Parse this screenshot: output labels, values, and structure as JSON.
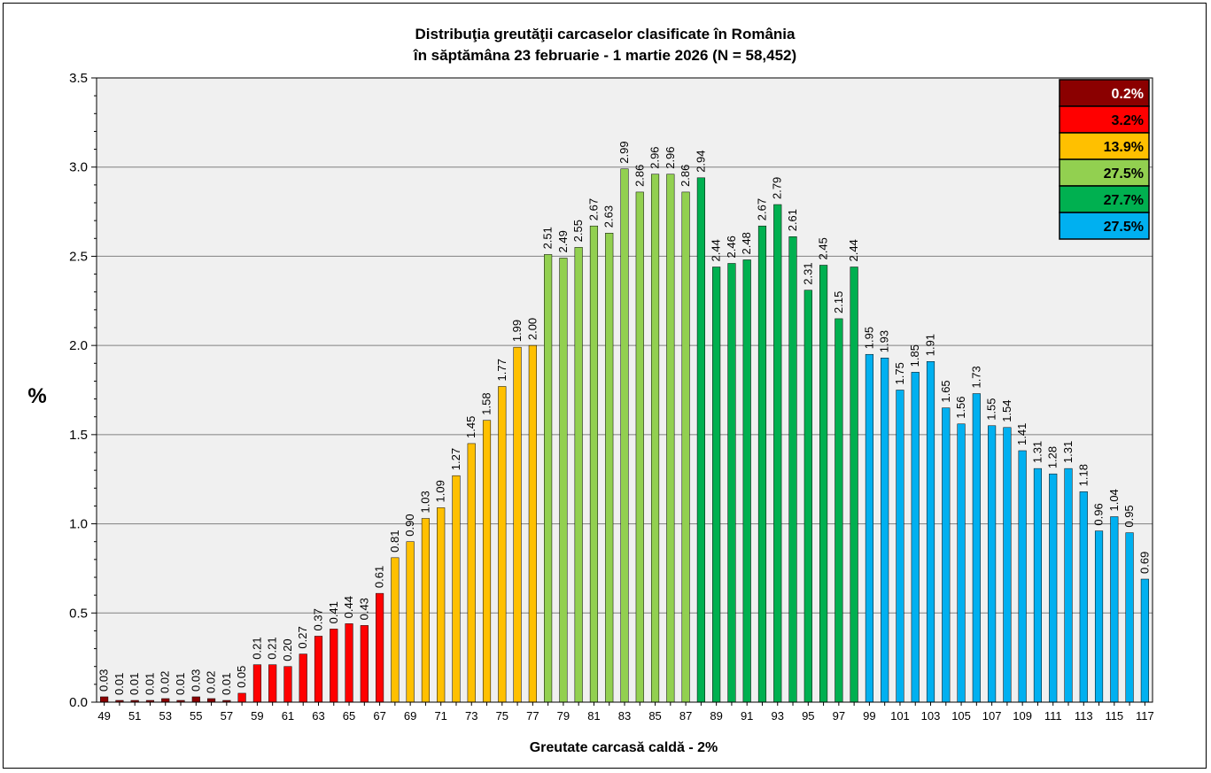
{
  "chart_data": {
    "type": "bar",
    "title": "Distribuţia greutăţii carcaselor clasificate în România",
    "subtitle": "în săptămâna 23 februarie - 1 martie 2026 (N = 58,452)",
    "xlabel": "Greutate carcasă caldă - 2%",
    "ylabel": "%",
    "ylim": [
      0,
      3.5
    ],
    "yticks": [
      "0.0",
      "0.5",
      "1.0",
      "1.5",
      "2.0",
      "2.5",
      "3.0",
      "3.5"
    ],
    "grid": true,
    "legend_position": "top-right",
    "x": [
      49,
      50,
      51,
      52,
      53,
      54,
      55,
      56,
      57,
      58,
      59,
      60,
      61,
      62,
      63,
      64,
      65,
      66,
      67,
      68,
      69,
      70,
      71,
      72,
      73,
      74,
      75,
      76,
      77,
      78,
      79,
      80,
      81,
      82,
      83,
      84,
      85,
      86,
      87,
      88,
      89,
      90,
      91,
      92,
      93,
      94,
      95,
      96,
      97,
      98,
      99,
      100,
      101,
      102,
      103,
      104,
      105,
      106,
      107,
      108,
      109,
      110,
      111,
      112,
      113,
      114,
      115,
      116,
      117
    ],
    "values": [
      0.03,
      0.01,
      0.01,
      0.01,
      0.02,
      0.01,
      0.03,
      0.02,
      0.01,
      0.05,
      0.21,
      0.21,
      0.2,
      0.27,
      0.37,
      0.41,
      0.44,
      0.43,
      0.61,
      0.81,
      0.9,
      1.03,
      1.09,
      1.27,
      1.45,
      1.58,
      1.77,
      1.99,
      2.0,
      2.51,
      2.49,
      2.55,
      2.67,
      2.63,
      2.99,
      2.86,
      2.96,
      2.96,
      2.86,
      2.94,
      2.44,
      2.46,
      2.48,
      2.67,
      2.79,
      2.61,
      2.31,
      2.45,
      2.15,
      2.44,
      1.95,
      1.93,
      1.75,
      1.85,
      1.91,
      1.65,
      1.56,
      1.73,
      1.55,
      1.54,
      1.41,
      1.31,
      1.28,
      1.31,
      1.18,
      0.96,
      1.04,
      0.95,
      0.69
    ],
    "data_labels": [
      "0.03",
      "0.01",
      "0.01",
      "0.01",
      "0.02",
      "0.01",
      "0.03",
      "0.02",
      "0.01",
      "0.05",
      "0.21",
      "0.21",
      "0.20",
      "0.27",
      "0.37",
      "0.41",
      "0.44",
      "0.43",
      "0.61",
      "0.81",
      "0.90",
      "1.03",
      "1.09",
      "1.27",
      "1.45",
      "1.58",
      "1.77",
      "1.99",
      "2.00",
      "2.51",
      "2.49",
      "2.55",
      "2.67",
      "2.63",
      "2.99",
      "2.86",
      "2.96",
      "2.96",
      "2.86",
      "2.94",
      "2.44",
      "2.46",
      "2.48",
      "2.67",
      "2.79",
      "2.61",
      "2.31",
      "2.45",
      "2.15",
      "2.44",
      "1.95",
      "1.93",
      "1.75",
      "1.85",
      "1.91",
      "1.65",
      "1.56",
      "1.73",
      "1.55",
      "1.54",
      "1.41",
      "1.31",
      "1.28",
      "1.31",
      "1.18",
      "0.96",
      "1.04",
      "0.95",
      "0.69"
    ],
    "x_tick_labels": [
      "49",
      "51",
      "53",
      "55",
      "57",
      "59",
      "61",
      "63",
      "65",
      "67",
      "69",
      "71",
      "73",
      "75",
      "77",
      "79",
      "81",
      "83",
      "85",
      "87",
      "89",
      "91",
      "93",
      "95",
      "97",
      "99",
      "101",
      "103",
      "105",
      "107",
      "109",
      "111",
      "113",
      "115",
      "117"
    ],
    "color_groups": [
      {
        "from": 49,
        "to": 57,
        "color": "#8b0000",
        "legend": "0.2%",
        "text_color": "#ffffff"
      },
      {
        "from": 58,
        "to": 67,
        "color": "#ff0000",
        "legend": "3.2%",
        "text_color": "#000000"
      },
      {
        "from": 68,
        "to": 77,
        "color": "#ffc000",
        "legend": "13.9%",
        "text_color": "#000000"
      },
      {
        "from": 78,
        "to": 87,
        "color": "#92d050",
        "legend": "27.5%",
        "text_color": "#000000"
      },
      {
        "from": 88,
        "to": 98,
        "color": "#00b050",
        "legend": "27.7%",
        "text_color": "#000000"
      },
      {
        "from": 99,
        "to": 117,
        "color": "#00b0f0",
        "legend": "27.5%",
        "text_color": "#000000"
      }
    ],
    "colors": {
      "plot_background": "#f0f0f0",
      "gridline": "#808080",
      "bar_border": "#000000"
    }
  }
}
